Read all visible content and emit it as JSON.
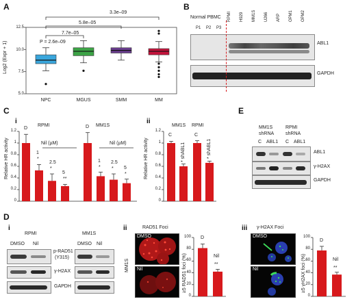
{
  "panels": {
    "A": "A",
    "B": "B",
    "C": "C",
    "E": "E",
    "D": "D",
    "Ci": "i",
    "Cii": "ii",
    "Di": "i",
    "Dii": "ii",
    "Diii": "iii"
  },
  "colors": {
    "bar_red": "#d7191c",
    "npc_blue": "#3aa6dc",
    "mgus_green": "#3ca346",
    "smm_purple": "#6a3d8f",
    "mm_red": "#c4143c",
    "dash_red": "#d7191c"
  },
  "panelA": {
    "ylabel": "Log2 (Expr + 1)",
    "ticks": [
      "12.5",
      "10.0",
      "7.5",
      "5.0"
    ],
    "groups": [
      "NPC",
      "MGUS",
      "SMM",
      "MM"
    ],
    "pvalues": [
      "3.3e–09",
      "5.8e–05",
      "7.7e–05",
      "P = 2.6e–09"
    ]
  },
  "panelB": {
    "normal_label": "Normal PBMC",
    "lanes": [
      "P1",
      "P2",
      "P3",
      "RPMI",
      "H929",
      "MM1S",
      "U266",
      "ARP",
      "OPM1",
      "OPM2"
    ],
    "protein1": "ABL1",
    "protein2": "GAPDH"
  },
  "panelCi": {
    "ylabel": "Relative HR activity",
    "ticks": [
      "1.2",
      "1",
      "0.8",
      "0.6",
      "0.4",
      "0.2",
      "0"
    ],
    "cell1": "RPMI",
    "cell2": "MM1S",
    "nil_label": "Nil (µM)",
    "dose_labels": [
      "1",
      "2.5",
      "5",
      "1",
      "2.5",
      "5"
    ],
    "letters": [
      "D",
      "D"
    ],
    "stars": [
      "*",
      "*",
      "**",
      "*",
      "*",
      "*"
    ]
  },
  "panelCii": {
    "ylabel": "Relative HR activity",
    "ticks": [
      "1.2",
      "1",
      "0.8",
      "0.6",
      "0.4",
      "0.2",
      "0"
    ],
    "cell1": "MM1S",
    "cell2": "RPMI",
    "letters": [
      "C",
      "C"
    ],
    "bar_labels": [
      "* shABL1",
      "* shABL1"
    ]
  },
  "panelE": {
    "cell1": "MM1S",
    "cell2": "RPMI",
    "shrna1": "shRNA",
    "shrna2": "shRNA",
    "lanes": [
      "C",
      "ABL1",
      "C",
      "ABL1"
    ],
    "proteins": [
      "ABL1",
      "γ-H2AX",
      "GAPDH"
    ]
  },
  "panelDi": {
    "cell1": "RPMI",
    "cell2": "MM1S",
    "lanes1": [
      "DMSO",
      "Nil"
    ],
    "lanes2": [
      "DMSO",
      "Nil"
    ],
    "proteins": [
      "p-RAD51",
      "(Y315)",
      "γ-H2AX",
      "GAPDH"
    ]
  },
  "panelDii": {
    "title": "RAD51 Foci",
    "img_labels": [
      "DMSO",
      "Nil"
    ],
    "side_label": "MM1S",
    "ylabel": "≥5 RAD51 foci (%)",
    "ticks": [
      "100",
      "80",
      "60",
      "40",
      "20",
      "0"
    ],
    "letter": "D",
    "nil": "Nil",
    "stars": "**"
  },
  "panelDiii": {
    "title": "γ-H2AX Foci",
    "img_labels": [
      "DMSO",
      "Nil"
    ],
    "ylabel": "≥5 γH2AX foci (%)",
    "ticks": [
      "100",
      "80",
      "60",
      "40",
      "20",
      "0"
    ],
    "letter": "D",
    "nil": "Nil",
    "stars": "**"
  },
  "chart_data": [
    {
      "type": "box",
      "title": "",
      "ylabel": "Log2 (Expr + 1)",
      "ylim": [
        5.0,
        12.5
      ],
      "categories": [
        "NPC",
        "MGUS",
        "SMM",
        "MM"
      ],
      "medians": [
        8.8,
        9.8,
        9.9,
        9.8
      ],
      "q1": [
        8.4,
        9.3,
        9.6,
        9.4
      ],
      "q3": [
        9.4,
        10.2,
        10.2,
        10.1
      ]
    },
    {
      "type": "bar",
      "title": "",
      "ylabel": "Relative HR activity",
      "ylim": [
        0,
        1.2
      ],
      "categories": [
        "RPMI D",
        "RPMI 1",
        "RPMI 2.5",
        "RPMI 5",
        "MM1S D",
        "MM1S 1",
        "MM1S 2.5",
        "MM1S 5"
      ],
      "values": [
        1.0,
        0.53,
        0.35,
        0.26,
        1.0,
        0.43,
        0.37,
        0.31
      ],
      "errors": [
        0.15,
        0.1,
        0.12,
        0.03,
        0.18,
        0.07,
        0.1,
        0.07
      ]
    },
    {
      "type": "bar",
      "title": "",
      "ylabel": "Relative HR activity",
      "ylim": [
        0,
        1.2
      ],
      "categories": [
        "MM1S C",
        "MM1S shABL1",
        "RPMI C",
        "RPMI shABL1"
      ],
      "values": [
        1.0,
        0.6,
        1.0,
        0.66
      ],
      "errors": [
        0.03,
        0.04,
        0.04,
        0.03
      ]
    },
    {
      "type": "bar",
      "title": "",
      "ylabel": "≥5 RAD51 foci (%)",
      "ylim": [
        0,
        100
      ],
      "categories": [
        "D",
        "Nil"
      ],
      "values": [
        82,
        42
      ],
      "errors": [
        7,
        4
      ]
    },
    {
      "type": "bar",
      "title": "",
      "ylabel": "≥5 γH2AX foci (%)",
      "ylim": [
        0,
        100
      ],
      "categories": [
        "D",
        "Nil"
      ],
      "values": [
        78,
        37
      ],
      "errors": [
        7,
        4
      ]
    }
  ]
}
